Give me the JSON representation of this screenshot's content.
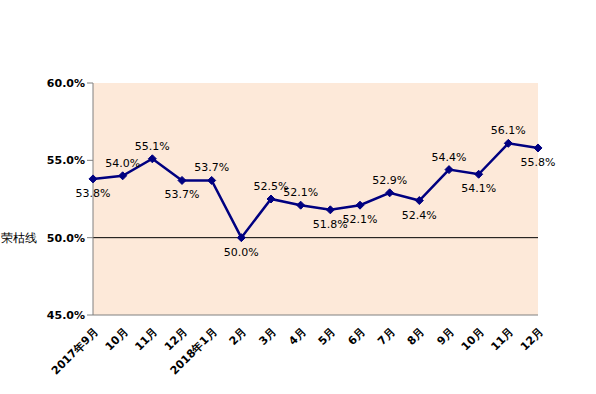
{
  "chart_data": {
    "type": "line",
    "categories": [
      "2017年9月",
      "10月",
      "11月",
      "12月",
      "2018年1月",
      "2月",
      "3月",
      "4月",
      "5月",
      "6月",
      "7月",
      "8月",
      "9月",
      "10月",
      "11月",
      "12月"
    ],
    "values": [
      53.8,
      54.0,
      55.1,
      53.7,
      53.7,
      50.0,
      52.5,
      52.1,
      51.8,
      52.1,
      52.9,
      52.4,
      54.4,
      54.1,
      56.1,
      55.8
    ],
    "value_labels": [
      "53.8%",
      "54.0%",
      "55.1%",
      "53.7%",
      "53.7%",
      "50.0%",
      "52.5%",
      "52.1%",
      "51.8%",
      "52.1%",
      "52.9%",
      "52.4%",
      "54.4%",
      "54.1%",
      "56.1%",
      "55.8%"
    ],
    "color": "#000080",
    "marker": "diamond",
    "ylim": [
      45,
      60
    ],
    "yticks": [
      {
        "value": 45,
        "label": "45.0%"
      },
      {
        "value": 50,
        "label": "50.0%"
      },
      {
        "value": 55,
        "label": "55.0%"
      },
      {
        "value": 60,
        "label": "60.0%"
      }
    ],
    "annotations": [
      {
        "text": "荣枯线",
        "y": 50
      }
    ],
    "grid": false,
    "data_labels": true
  }
}
